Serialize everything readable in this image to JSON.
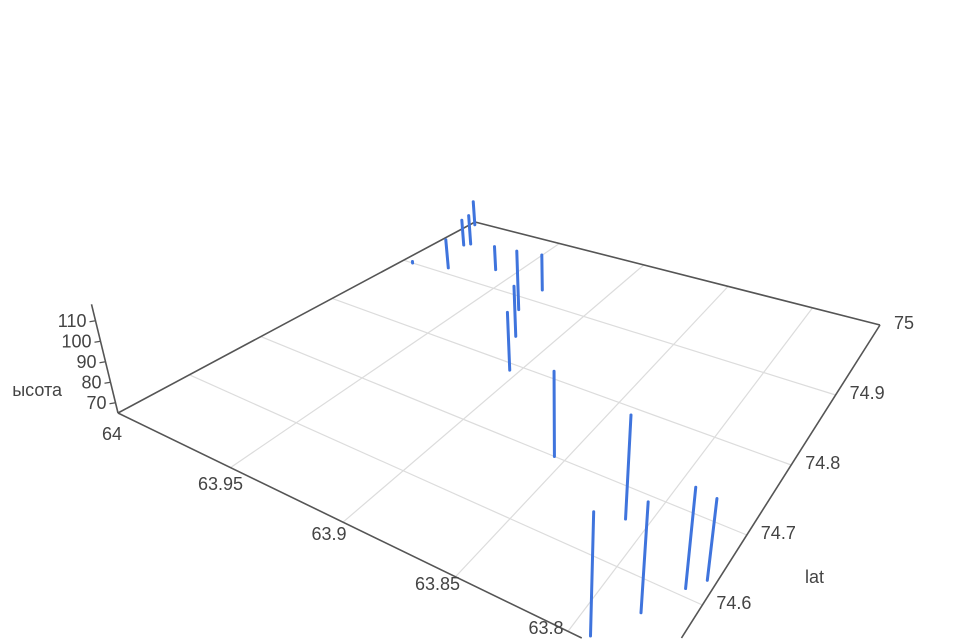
{
  "chart_data": {
    "type": "scatter3d-lines",
    "title": "",
    "axes": {
      "x": {
        "label": "",
        "range": [
          63.76,
          64
        ],
        "ticks": [
          64,
          63.95,
          63.9,
          63.85,
          63.8
        ],
        "tick_labels": [
          "64",
          "63.95",
          "63.9",
          "63.85",
          "63.8"
        ]
      },
      "y": {
        "label": "lat",
        "range": [
          74.5,
          75
        ],
        "ticks": [
          74.6,
          74.7,
          74.8,
          74.9,
          75
        ],
        "tick_labels": [
          "74.6",
          "74.7",
          "74.8",
          "74.9",
          "75"
        ]
      },
      "z": {
        "label": "ысота",
        "range": [
          65,
          115
        ],
        "ticks": [
          70,
          80,
          90,
          100,
          110
        ],
        "tick_labels": [
          "70",
          "80",
          "90",
          "100",
          "110"
        ]
      }
    },
    "grid": true,
    "line_color": "#3f74dd",
    "grid_color": "#dcdcdc",
    "axis_color": "#555555",
    "segments": [
      {
        "lon": 63.995,
        "lat": 74.9,
        "z": [
          65,
          66
        ]
      },
      {
        "lon": 63.979,
        "lat": 74.91,
        "z": [
          65,
          86
        ]
      },
      {
        "lon": 63.988,
        "lat": 74.955,
        "z": [
          65,
          86
        ]
      },
      {
        "lon": 63.986,
        "lat": 74.96,
        "z": [
          65,
          89
        ]
      },
      {
        "lon": 63.998,
        "lat": 74.995,
        "z": [
          65,
          87.5
        ]
      },
      {
        "lon": 63.96,
        "lat": 74.93,
        "z": [
          65,
          81
        ]
      },
      {
        "lon": 63.929,
        "lat": 74.88,
        "z": [
          65,
          98
        ]
      },
      {
        "lon": 63.917,
        "lat": 74.84,
        "z": [
          65,
          90.8
        ]
      },
      {
        "lon": 63.904,
        "lat": 74.79,
        "z": [
          65,
          92
        ]
      },
      {
        "lon": 63.93,
        "lat": 74.92,
        "z": [
          65,
          85.8
        ]
      },
      {
        "lon": 63.855,
        "lat": 74.7,
        "z": [
          65,
          96.7
        ]
      },
      {
        "lon": 63.81,
        "lat": 74.66,
        "z": [
          65,
          98.5
        ]
      },
      {
        "lon": 63.79,
        "lat": 74.5,
        "z": [
          65,
          101.5
        ]
      },
      {
        "lon": 63.78,
        "lat": 74.56,
        "z": [
          65,
          96.4
        ]
      },
      {
        "lon": 63.77,
        "lat": 74.61,
        "z": [
          65,
          93.9
        ]
      },
      {
        "lon": 63.764,
        "lat": 74.63,
        "z": [
          65,
          88.3
        ]
      }
    ]
  }
}
